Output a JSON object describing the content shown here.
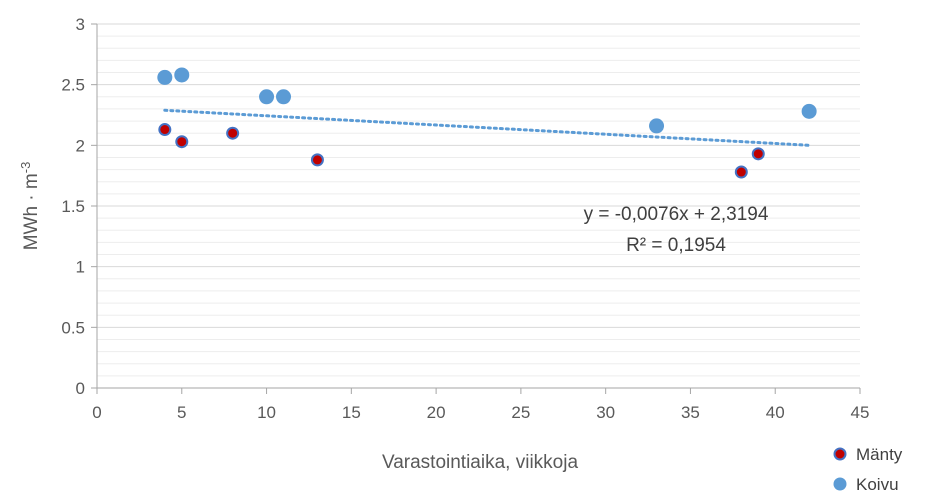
{
  "chart_data": {
    "type": "scatter",
    "xlabel": "Varastointiaika, viikkoja",
    "ylabel": "MWh · m",
    "ylabel_sup": "-3",
    "xlim": [
      0,
      45
    ],
    "ylim": [
      0,
      3
    ],
    "x_ticks": [
      "0",
      "5",
      "10",
      "15",
      "20",
      "25",
      "30",
      "35",
      "40",
      "45"
    ],
    "y_ticks": [
      "0",
      "0.5",
      "1",
      "1.5",
      "2",
      "2.5",
      "3"
    ],
    "major_grid": true,
    "minor_grid": true,
    "legend_position": "bottom-right",
    "series": [
      {
        "name": "Mänty",
        "color": "#C00000",
        "border": "#4472C4",
        "points": [
          {
            "x": 4,
            "y": 2.13
          },
          {
            "x": 5,
            "y": 2.03
          },
          {
            "x": 8,
            "y": 2.1
          },
          {
            "x": 13,
            "y": 1.88
          },
          {
            "x": 38,
            "y": 1.78
          },
          {
            "x": 39,
            "y": 1.93
          }
        ]
      },
      {
        "name": "Koivu",
        "color": "#5B9BD5",
        "border": "#5B9BD5",
        "points": [
          {
            "x": 4,
            "y": 2.56
          },
          {
            "x": 5,
            "y": 2.58
          },
          {
            "x": 10,
            "y": 2.4
          },
          {
            "x": 11,
            "y": 2.4
          },
          {
            "x": 33,
            "y": 2.16
          },
          {
            "x": 42,
            "y": 2.28
          }
        ]
      }
    ],
    "trendline": {
      "slope": -0.0076,
      "intercept": 2.3194,
      "x_range": [
        4,
        42
      ],
      "color": "#5B9BD5",
      "equation": "y = -0,0076x + 2,3194",
      "r2": "R² = 0,1954"
    }
  }
}
